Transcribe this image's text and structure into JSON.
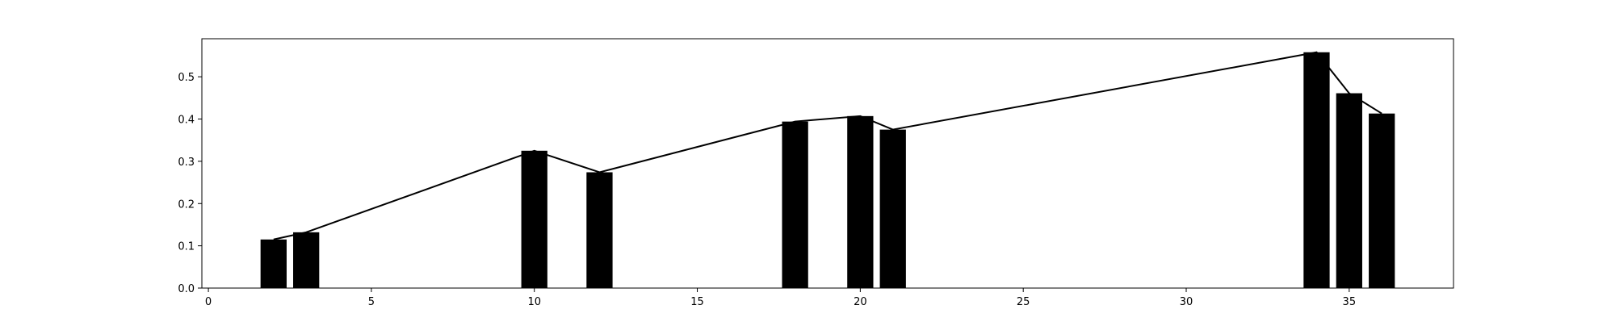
{
  "chart_data": {
    "type": "bar",
    "title": "",
    "xlabel": "",
    "ylabel": "",
    "xlim": [
      -0.2,
      38.2
    ],
    "ylim": [
      0.0,
      0.59
    ],
    "xticks": [
      0,
      5,
      10,
      15,
      20,
      25,
      30,
      35
    ],
    "yticks": [
      0.0,
      0.1,
      0.2,
      0.3,
      0.4,
      0.5
    ],
    "ytick_format": 1,
    "grid": false,
    "legend": "none",
    "bar_width": 0.8,
    "colors": {
      "bar": "#000000",
      "line": "#000000",
      "axes": "#000000",
      "background": "#ffffff"
    },
    "series": [
      {
        "kind": "bar",
        "x": [
          2,
          3,
          10,
          12,
          18,
          20,
          21,
          34,
          35,
          36
        ],
        "values": [
          0.115,
          0.132,
          0.325,
          0.274,
          0.394,
          0.407,
          0.375,
          0.558,
          0.461,
          0.413
        ]
      },
      {
        "kind": "line",
        "x": [
          2,
          3,
          10,
          12,
          18,
          20,
          21,
          34,
          35,
          36
        ],
        "values": [
          0.115,
          0.132,
          0.325,
          0.274,
          0.394,
          0.407,
          0.375,
          0.558,
          0.461,
          0.413
        ]
      }
    ]
  }
}
